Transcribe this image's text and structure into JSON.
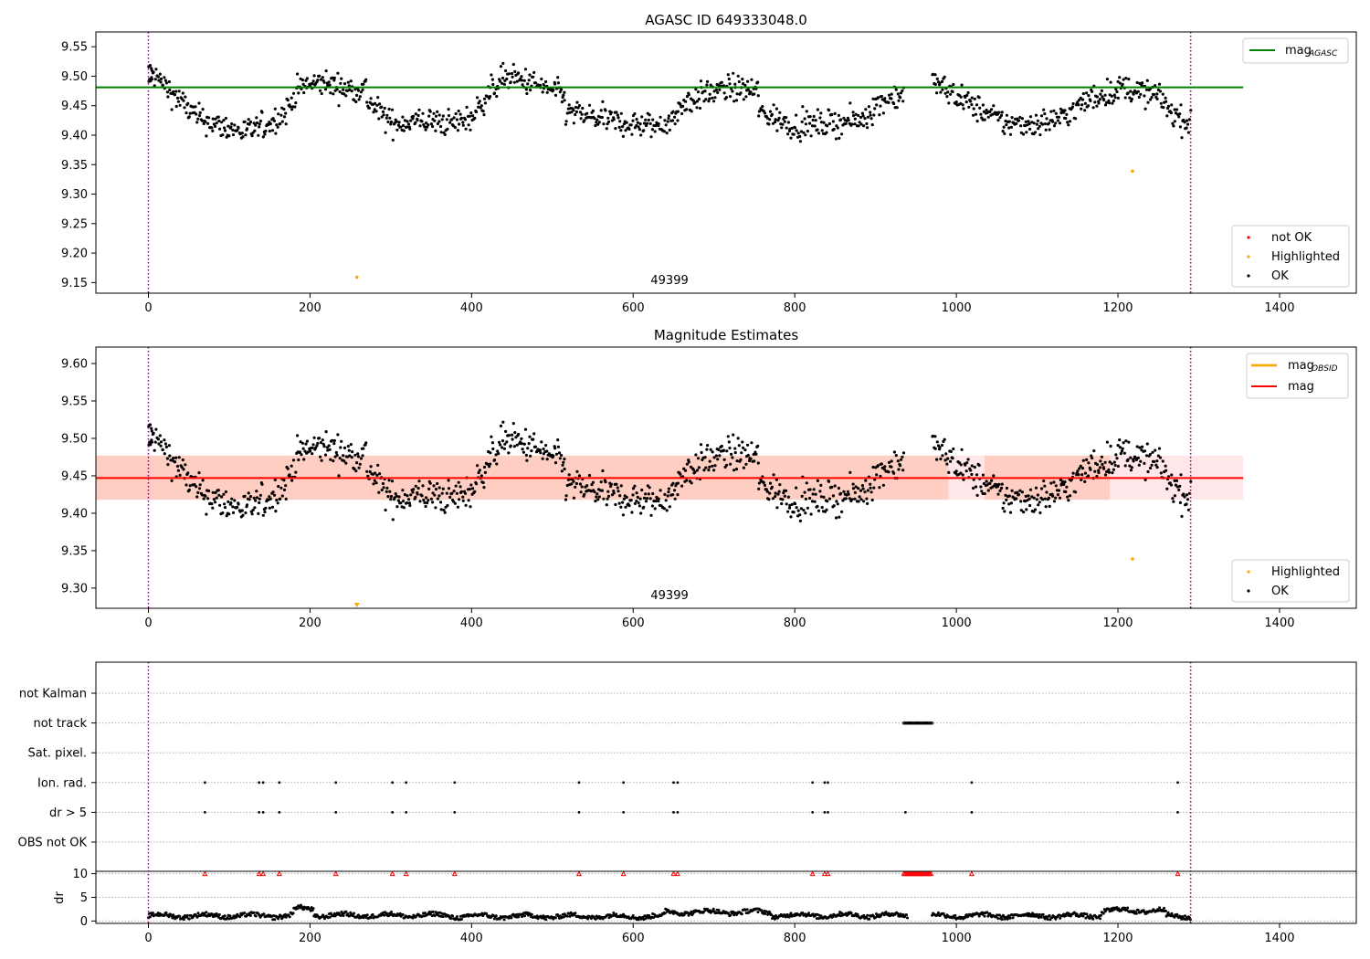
{
  "chart_data": [
    {
      "type": "scatter",
      "title": "AGASC ID 649333048.0",
      "xlim": [
        -65,
        1495
      ],
      "ylim": [
        9.132,
        9.575
      ],
      "x_ticks": [
        0,
        200,
        400,
        600,
        800,
        1000,
        1200,
        1400
      ],
      "y_ticks": [
        9.15,
        9.2,
        9.25,
        9.3,
        9.35,
        9.4,
        9.45,
        9.5,
        9.55
      ],
      "y_tick_labels": [
        "9.15",
        "9.20",
        "9.25",
        "9.30",
        "9.35",
        "9.40",
        "9.45",
        "9.50",
        "9.55"
      ],
      "annotation": "49399",
      "annotation_x": 645,
      "vlines": [
        0,
        1290
      ],
      "hline": {
        "value": 9.481,
        "x_range": [
          -65,
          1355
        ],
        "color": "#008000"
      },
      "legend_lines": [
        {
          "label": "mag",
          "subscript": "AGASC",
          "color": "#008000"
        }
      ],
      "legend_points": [
        {
          "label": "not OK",
          "color": "#ff0000"
        },
        {
          "label": "Highlighted",
          "color": "#ffa500"
        },
        {
          "label": "OK",
          "color": "#000000"
        }
      ],
      "highlighted_points": [
        [
          258,
          9.159
        ],
        [
          1218,
          9.339
        ]
      ],
      "series_segments": [
        {
          "x_start": 0,
          "x_end": 5,
          "points": [
            [
              0,
              9.48
            ],
            [
              5,
              9.505
            ]
          ]
        },
        {
          "x_start": 0,
          "x_end": 185,
          "points": [
            [
              5,
              9.505
            ],
            [
              30,
              9.47
            ],
            [
              60,
              9.43
            ],
            [
              90,
              9.415
            ],
            [
              120,
              9.405
            ],
            [
              150,
              9.42
            ],
            [
              170,
              9.44
            ],
            [
              185,
              9.48
            ]
          ]
        },
        {
          "x_start": 185,
          "x_end": 270,
          "points": [
            [
              185,
              9.48
            ],
            [
              215,
              9.49
            ],
            [
              245,
              9.478
            ],
            [
              270,
              9.48
            ]
          ]
        },
        {
          "x_start": 270,
          "x_end": 420,
          "points": [
            [
              270,
              9.46
            ],
            [
              300,
              9.42
            ],
            [
              340,
              9.425
            ],
            [
              375,
              9.42
            ],
            [
              400,
              9.43
            ],
            [
              420,
              9.47
            ]
          ]
        },
        {
          "x_start": 420,
          "x_end": 515,
          "points": [
            [
              420,
              9.47
            ],
            [
              440,
              9.5
            ],
            [
              470,
              9.49
            ],
            [
              500,
              9.475
            ],
            [
              515,
              9.465
            ]
          ]
        },
        {
          "x_start": 515,
          "x_end": 655,
          "points": [
            [
              515,
              9.44
            ],
            [
              550,
              9.43
            ],
            [
              590,
              9.42
            ],
            [
              625,
              9.415
            ],
            [
              655,
              9.43
            ]
          ]
        },
        {
          "x_start": 655,
          "x_end": 755,
          "points": [
            [
              655,
              9.45
            ],
            [
              690,
              9.47
            ],
            [
              720,
              9.48
            ],
            [
              755,
              9.475
            ]
          ]
        },
        {
          "x_start": 755,
          "x_end": 935,
          "points": [
            [
              755,
              9.44
            ],
            [
              800,
              9.415
            ],
            [
              840,
              9.42
            ],
            [
              880,
              9.425
            ],
            [
              910,
              9.46
            ],
            [
              935,
              9.47
            ]
          ]
        },
        {
          "x_start": 970,
          "x_end": 1130,
          "points": [
            [
              970,
              9.49
            ],
            [
              990,
              9.475
            ],
            [
              1020,
              9.45
            ],
            [
              1060,
              9.42
            ],
            [
              1100,
              9.42
            ],
            [
              1130,
              9.43
            ]
          ]
        },
        {
          "x_start": 1130,
          "x_end": 1260,
          "points": [
            [
              1130,
              9.43
            ],
            [
              1170,
              9.465
            ],
            [
              1210,
              9.48
            ],
            [
              1250,
              9.465
            ],
            [
              1260,
              9.455
            ]
          ]
        },
        {
          "x_start": 1260,
          "x_end": 1290,
          "points": [
            [
              1260,
              9.445
            ],
            [
              1275,
              9.43
            ],
            [
              1290,
              9.415
            ]
          ]
        }
      ]
    },
    {
      "type": "scatter",
      "title": "Magnitude Estimates",
      "xlim": [
        -65,
        1495
      ],
      "ylim": [
        9.273,
        9.622
      ],
      "x_ticks": [
        0,
        200,
        400,
        600,
        800,
        1000,
        1200,
        1400
      ],
      "y_ticks": [
        9.3,
        9.35,
        9.4,
        9.45,
        9.5,
        9.55,
        9.6
      ],
      "y_tick_labels": [
        "9.30",
        "9.35",
        "9.40",
        "9.45",
        "9.50",
        "9.55",
        "9.60"
      ],
      "annotation": "49399",
      "annotation_x": 645,
      "vlines": [
        0,
        1290
      ],
      "hline": {
        "value": 9.447,
        "x_range": [
          -65,
          1355
        ],
        "color": "#ff0000"
      },
      "bands": [
        {
          "y_range": [
            9.418,
            9.477
          ],
          "x_range": [
            -65,
            1355
          ],
          "color": "#ffb6c1",
          "opacity": 0.35
        },
        {
          "y_range": [
            9.418,
            9.477
          ],
          "x_range": [
            -65,
            990
          ],
          "color": "#ffa07a",
          "opacity": 0.35
        },
        {
          "y_range": [
            9.418,
            9.477
          ],
          "x_range": [
            1035,
            1190
          ],
          "color": "#ffa07a",
          "opacity": 0.35
        }
      ],
      "legend_lines": [
        {
          "label": "mag",
          "subscript": "OBSID",
          "color": "#ffa500"
        },
        {
          "label": "mag",
          "subscript": "",
          "color": "#ff0000"
        }
      ],
      "legend_points": [
        {
          "label": "Highlighted",
          "color": "#ffa500"
        },
        {
          "label": "OK",
          "color": "#000000"
        }
      ],
      "highlighted_points": [
        [
          1218,
          9.339
        ]
      ],
      "lower_marker": {
        "x": 258,
        "color": "#ffa500"
      }
    },
    {
      "type": "scatter",
      "xlim": [
        -65,
        1495
      ],
      "x_ticks": [
        0,
        200,
        400,
        600,
        800,
        1000,
        1200,
        1400
      ],
      "vlines": [
        0,
        1290
      ],
      "flag_rows": [
        "not Kalman",
        "not track",
        "Sat. pixel.",
        "Ion. rad.",
        "dr > 5",
        "OBS not OK"
      ],
      "flags": {
        "not track": {
          "x_range": [
            935,
            970
          ]
        },
        "Ion. rad.": [
          70,
          137,
          142,
          162,
          232,
          302,
          319,
          379,
          533,
          588,
          650,
          655,
          822,
          837,
          841,
          1019,
          1274
        ],
        "dr > 5": [
          70,
          137,
          142,
          162,
          232,
          302,
          319,
          379,
          533,
          588,
          650,
          655,
          822,
          837,
          841,
          937,
          1019,
          1274
        ]
      },
      "dr_panel": {
        "ylabel": "dr",
        "ylim": [
          -0.5,
          10.5
        ],
        "y_ticks": [
          0,
          5,
          10
        ],
        "y_tick_labels": [
          "0",
          "5",
          "10"
        ],
        "red_markers_at_10": [
          70,
          137,
          142,
          162,
          232,
          302,
          319,
          379,
          533,
          588,
          650,
          655,
          822,
          837,
          841,
          1019,
          1274
        ],
        "red_marker_range": [
          935,
          970
        ],
        "levels": [
          {
            "x_range": [
              0,
              180
            ],
            "value": 1.1
          },
          {
            "x_range": [
              180,
              205
            ],
            "value": 2.6
          },
          {
            "x_range": [
              205,
              370
            ],
            "value": 1.2
          },
          {
            "x_range": [
              370,
              640
            ],
            "value": 1.0
          },
          {
            "x_range": [
              640,
              770
            ],
            "value": 1.9
          },
          {
            "x_range": [
              770,
              940
            ],
            "value": 1.2
          },
          {
            "x_range": [
              970,
              1180
            ],
            "value": 1.1
          },
          {
            "x_range": [
              1180,
              1260
            ],
            "value": 2.2
          },
          {
            "x_range": [
              1260,
              1290
            ],
            "value": 1.0
          }
        ]
      }
    }
  ]
}
